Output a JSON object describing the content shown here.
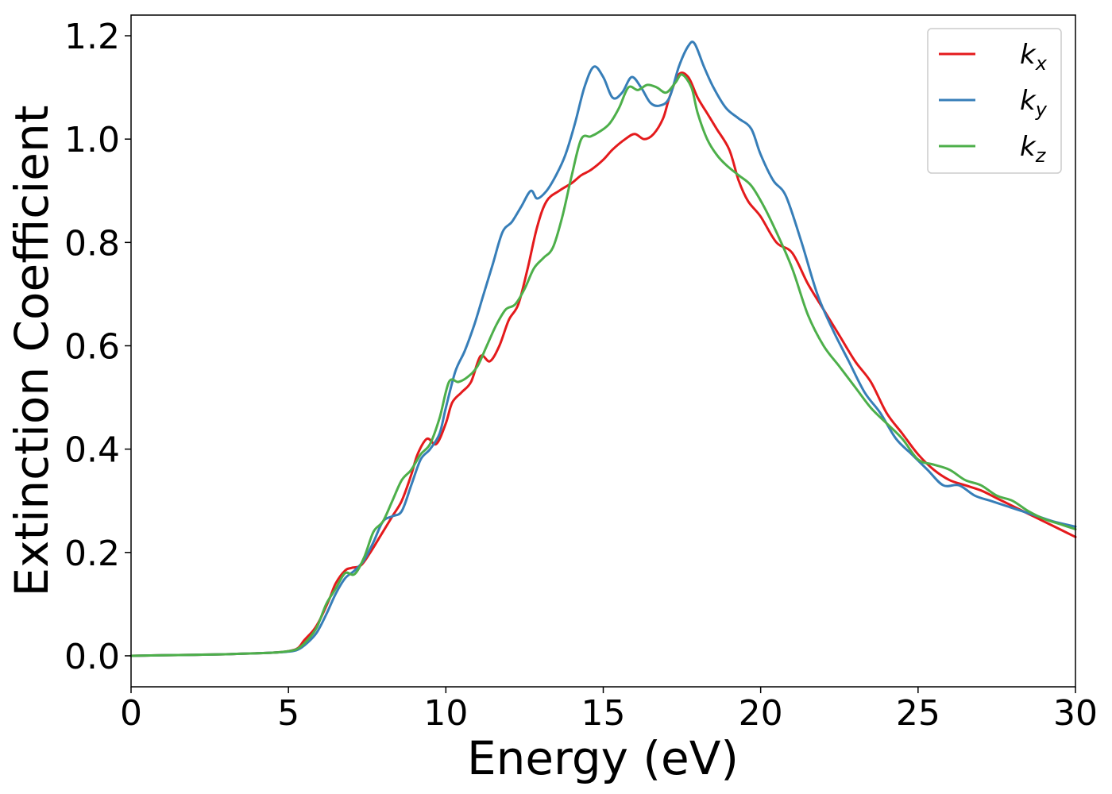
{
  "chart_data": {
    "type": "line",
    "title": "",
    "xlabel": "Energy (eV)",
    "ylabel": "Extinction Coefficient",
    "xlim": [
      0,
      30
    ],
    "ylim": [
      -0.06,
      1.24
    ],
    "xticks": [
      0,
      5,
      10,
      15,
      20,
      25,
      30
    ],
    "xtick_labels": [
      "0",
      "5",
      "10",
      "15",
      "20",
      "25",
      "30"
    ],
    "yticks": [
      0.0,
      0.2,
      0.4,
      0.6,
      0.8,
      1.0,
      1.2
    ],
    "ytick_labels": [
      "0.0",
      "0.2",
      "0.4",
      "0.6",
      "0.8",
      "1.0",
      "1.2"
    ],
    "grid": false,
    "legend_position": "top-right",
    "series": [
      {
        "name": "kx",
        "label_base": "k",
        "label_sub": "x",
        "color": "#e41a1c",
        "x": [
          0,
          1,
          2,
          3,
          4,
          4.5,
          5,
          5.3,
          5.5,
          5.8,
          6.0,
          6.3,
          6.5,
          6.8,
          7.0,
          7.3,
          7.6,
          8.0,
          8.3,
          8.6,
          8.9,
          9.1,
          9.4,
          9.7,
          10.0,
          10.2,
          10.5,
          10.8,
          11.1,
          11.4,
          11.7,
          12.0,
          12.3,
          12.6,
          12.9,
          13.2,
          13.6,
          14.0,
          14.3,
          14.6,
          15.0,
          15.3,
          15.7,
          16.0,
          16.3,
          16.6,
          16.9,
          17.1,
          17.4,
          17.7,
          18.0,
          18.3,
          18.6,
          19.0,
          19.3,
          19.6,
          20.0,
          20.5,
          21.0,
          21.5,
          22.0,
          22.5,
          23.0,
          23.5,
          24.0,
          24.5,
          25.0,
          25.5,
          26.0,
          26.5,
          27.0,
          27.5,
          28.0,
          28.5,
          29.0,
          29.5,
          30.0
        ],
        "y": [
          0.0,
          0.001,
          0.002,
          0.003,
          0.005,
          0.006,
          0.009,
          0.015,
          0.03,
          0.05,
          0.07,
          0.11,
          0.14,
          0.165,
          0.17,
          0.175,
          0.2,
          0.24,
          0.27,
          0.3,
          0.35,
          0.39,
          0.42,
          0.41,
          0.45,
          0.49,
          0.51,
          0.53,
          0.58,
          0.57,
          0.6,
          0.65,
          0.68,
          0.75,
          0.83,
          0.88,
          0.9,
          0.915,
          0.93,
          0.94,
          0.96,
          0.98,
          1.0,
          1.01,
          1.0,
          1.01,
          1.04,
          1.08,
          1.125,
          1.12,
          1.08,
          1.05,
          1.02,
          0.98,
          0.92,
          0.88,
          0.85,
          0.8,
          0.78,
          0.72,
          0.67,
          0.62,
          0.57,
          0.53,
          0.47,
          0.43,
          0.39,
          0.36,
          0.34,
          0.33,
          0.32,
          0.305,
          0.29,
          0.275,
          0.26,
          0.245,
          0.23
        ]
      },
      {
        "name": "ky",
        "label_base": "k",
        "label_sub": "y",
        "color": "#377eb8",
        "x": [
          0,
          1,
          2,
          3,
          4,
          4.5,
          5,
          5.3,
          5.6,
          5.9,
          6.2,
          6.5,
          6.8,
          7.1,
          7.4,
          7.7,
          8.0,
          8.3,
          8.6,
          8.9,
          9.2,
          9.5,
          9.8,
          10.0,
          10.3,
          10.6,
          10.9,
          11.2,
          11.5,
          11.8,
          12.1,
          12.4,
          12.7,
          12.9,
          13.2,
          13.5,
          13.8,
          14.1,
          14.4,
          14.7,
          15.0,
          15.3,
          15.6,
          15.9,
          16.2,
          16.5,
          16.8,
          17.1,
          17.4,
          17.7,
          17.9,
          18.2,
          18.5,
          18.9,
          19.3,
          19.7,
          20.0,
          20.4,
          20.8,
          21.3,
          21.8,
          22.3,
          22.8,
          23.3,
          23.8,
          24.3,
          24.8,
          25.3,
          25.8,
          26.3,
          26.8,
          27.3,
          27.8,
          28.3,
          28.8,
          29.3,
          30.0
        ],
        "y": [
          0.0,
          0.001,
          0.002,
          0.003,
          0.005,
          0.006,
          0.008,
          0.012,
          0.025,
          0.045,
          0.08,
          0.12,
          0.15,
          0.165,
          0.185,
          0.22,
          0.26,
          0.27,
          0.28,
          0.33,
          0.38,
          0.4,
          0.43,
          0.48,
          0.55,
          0.59,
          0.64,
          0.7,
          0.76,
          0.82,
          0.84,
          0.87,
          0.9,
          0.885,
          0.9,
          0.93,
          0.97,
          1.03,
          1.1,
          1.14,
          1.12,
          1.08,
          1.09,
          1.12,
          1.1,
          1.07,
          1.065,
          1.08,
          1.14,
          1.18,
          1.185,
          1.14,
          1.1,
          1.06,
          1.04,
          1.02,
          0.97,
          0.92,
          0.89,
          0.8,
          0.7,
          0.63,
          0.57,
          0.51,
          0.47,
          0.42,
          0.39,
          0.36,
          0.33,
          0.33,
          0.31,
          0.3,
          0.29,
          0.28,
          0.27,
          0.26,
          0.25
        ]
      },
      {
        "name": "kz",
        "label_base": "k",
        "label_sub": "z",
        "color": "#4daf4a",
        "x": [
          0,
          1,
          2,
          3,
          4,
          4.5,
          5,
          5.3,
          5.6,
          5.9,
          6.2,
          6.5,
          6.8,
          7.1,
          7.4,
          7.7,
          8.0,
          8.3,
          8.6,
          8.9,
          9.2,
          9.5,
          9.8,
          10.1,
          10.4,
          10.7,
          11.0,
          11.3,
          11.6,
          11.9,
          12.2,
          12.5,
          12.8,
          13.1,
          13.4,
          13.7,
          14.0,
          14.3,
          14.6,
          14.9,
          15.2,
          15.5,
          15.8,
          16.1,
          16.4,
          16.7,
          17.0,
          17.3,
          17.5,
          17.8,
          18.0,
          18.3,
          18.6,
          18.9,
          19.3,
          19.7,
          20.1,
          20.5,
          21.0,
          21.5,
          22.0,
          22.5,
          23.0,
          23.5,
          24.0,
          24.5,
          25.0,
          25.5,
          26.0,
          26.5,
          27.0,
          27.5,
          28.0,
          28.5,
          29.0,
          29.5,
          30.0
        ],
        "y": [
          0.0,
          0.001,
          0.002,
          0.003,
          0.005,
          0.006,
          0.009,
          0.014,
          0.03,
          0.055,
          0.1,
          0.13,
          0.16,
          0.158,
          0.19,
          0.24,
          0.26,
          0.3,
          0.34,
          0.36,
          0.39,
          0.41,
          0.46,
          0.53,
          0.53,
          0.54,
          0.56,
          0.6,
          0.64,
          0.67,
          0.68,
          0.71,
          0.75,
          0.77,
          0.79,
          0.85,
          0.93,
          1.0,
          1.005,
          1.015,
          1.03,
          1.06,
          1.1,
          1.095,
          1.105,
          1.1,
          1.09,
          1.11,
          1.125,
          1.1,
          1.05,
          1.0,
          0.97,
          0.95,
          0.93,
          0.91,
          0.87,
          0.82,
          0.75,
          0.66,
          0.6,
          0.56,
          0.52,
          0.48,
          0.45,
          0.42,
          0.38,
          0.37,
          0.36,
          0.34,
          0.33,
          0.31,
          0.3,
          0.28,
          0.265,
          0.255,
          0.245
        ]
      }
    ]
  }
}
